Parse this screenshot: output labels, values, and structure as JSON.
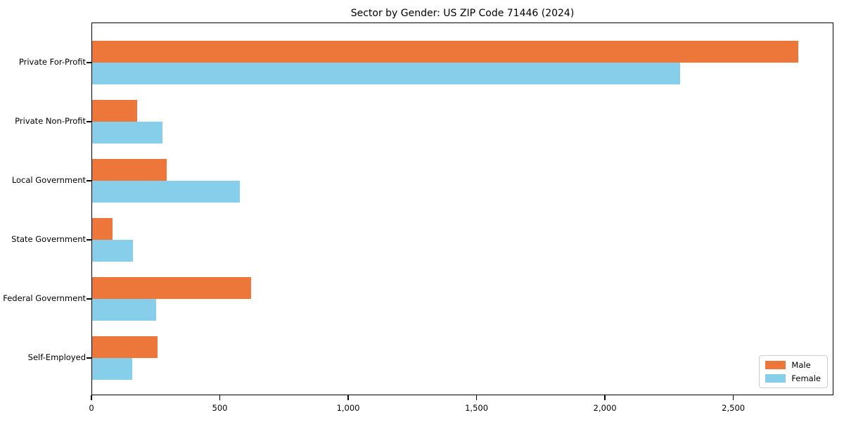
{
  "chart_data": {
    "type": "bar",
    "orientation": "horizontal",
    "title": "Sector by Gender: US ZIP Code 71446 (2024)",
    "categories": [
      "Private For-Profit",
      "Private Non-Profit",
      "Local Government",
      "State Government",
      "Federal Government",
      "Self-Employed"
    ],
    "series": [
      {
        "name": "Male",
        "color": "#ED763B",
        "values": [
          2750,
          175,
          290,
          80,
          620,
          255
        ]
      },
      {
        "name": "Female",
        "color": "#87CEEB",
        "values": [
          2290,
          275,
          575,
          160,
          250,
          155
        ]
      }
    ],
    "xlabel": "",
    "ylabel": "",
    "xlim": [
      0,
      2890
    ],
    "x_ticks": [
      0,
      500,
      1000,
      1500,
      2000,
      2500
    ],
    "x_tick_labels": [
      "0",
      "500",
      "1,000",
      "1,500",
      "2,000",
      "2,500"
    ],
    "grid": false,
    "legend_position": "lower right",
    "background_color": "#ffffff",
    "axis_color": "#000000"
  }
}
